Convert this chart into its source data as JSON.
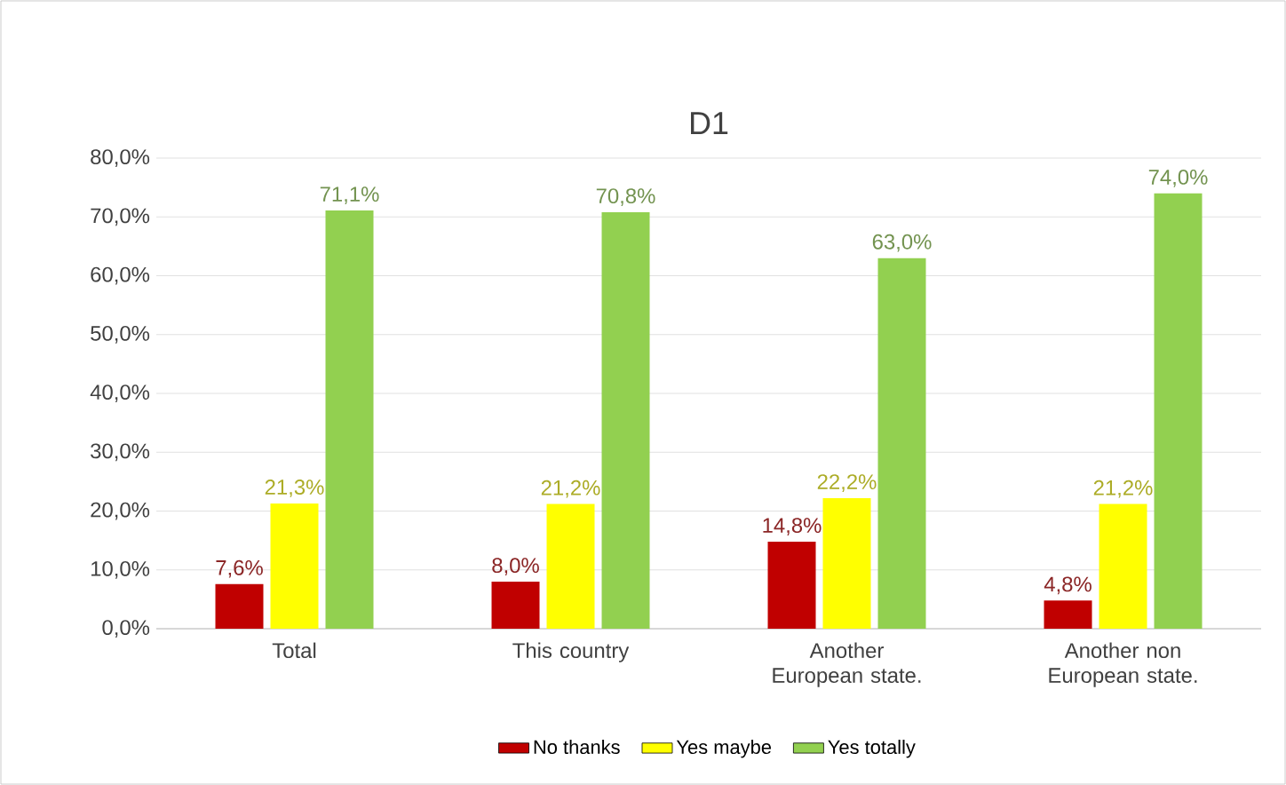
{
  "chart_data": {
    "type": "bar",
    "title": "D1",
    "categories": [
      "Total",
      "This country",
      "Another European state.",
      "Another non European state."
    ],
    "series": [
      {
        "name": "No thanks",
        "color": "#c00000",
        "values": [
          7.6,
          8.0,
          14.8,
          4.8
        ],
        "value_labels": [
          "7,6%",
          "8,0%",
          "14,8%",
          "4,8%"
        ]
      },
      {
        "name": "Yes maybe",
        "color": "#ffff00",
        "values": [
          21.3,
          21.2,
          22.2,
          21.2
        ],
        "value_labels": [
          "21,3%",
          "21,2%",
          "22,2%",
          "21,2%"
        ]
      },
      {
        "name": "Yes totally",
        "color": "#92d050",
        "values": [
          71.1,
          70.8,
          63.0,
          74.0
        ],
        "value_labels": [
          "71,1%",
          "70,8%",
          "63,0%",
          "74,0%"
        ]
      }
    ],
    "ylim": [
      0,
      80
    ],
    "yticks": [
      {
        "value": 0,
        "label": "0,0%"
      },
      {
        "value": 10,
        "label": "10,0%"
      },
      {
        "value": 20,
        "label": "20,0%"
      },
      {
        "value": 30,
        "label": "30,0%"
      },
      {
        "value": 40,
        "label": "40,0%"
      },
      {
        "value": 50,
        "label": "50,0%"
      },
      {
        "value": 60,
        "label": "60,0%"
      },
      {
        "value": 70,
        "label": "70,0%"
      },
      {
        "value": 80,
        "label": "80,0%"
      }
    ],
    "grid": "y",
    "legend": "bottom"
  }
}
